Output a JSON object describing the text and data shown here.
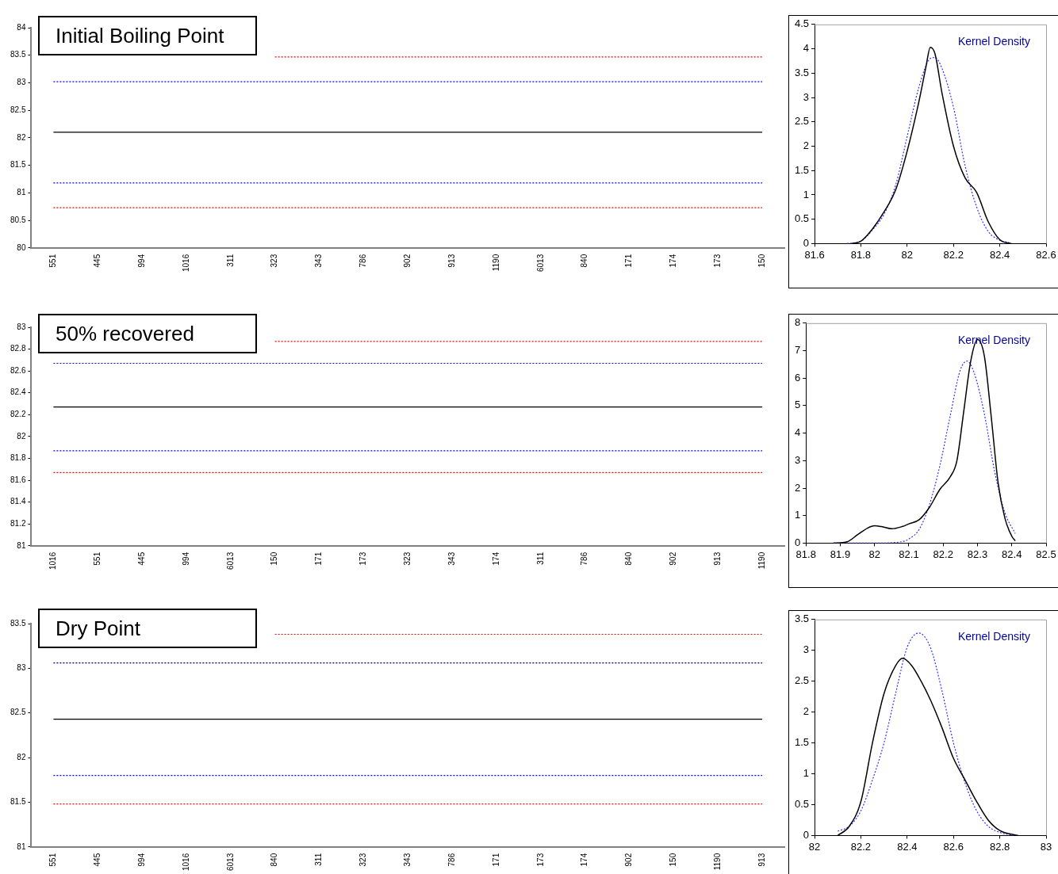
{
  "chart_data": [
    {
      "type": "line",
      "title": "Initial Boiling Point",
      "categories": [
        "551",
        "445",
        "994",
        "1016",
        "311",
        "323",
        "343",
        "786",
        "902",
        "913",
        "1190",
        "6013",
        "840",
        "171",
        "174",
        "173",
        "150"
      ],
      "ylim": [
        80,
        84
      ],
      "yticks": [
        80,
        80.5,
        81,
        81.5,
        82,
        82.5,
        83,
        83.5,
        84
      ],
      "grid": false,
      "legend": false,
      "marker": "none",
      "series": [
        {
          "color": "#ff0000",
          "line_style": "dotted",
          "values": [
            null,
            null,
            null,
            null,
            null,
            83.47,
            83.47,
            83.47,
            83.47,
            83.47,
            83.47,
            83.47,
            83.47,
            83.47,
            83.47,
            83.47,
            83.47
          ]
        },
        {
          "color": "#0000ff",
          "line_style": "dotted",
          "values": [
            83.02,
            83.02,
            83.02,
            83.02,
            83.02,
            83.02,
            83.02,
            83.02,
            83.02,
            83.02,
            83.02,
            83.02,
            83.02,
            83.02,
            83.02,
            83.02,
            83.02
          ]
        },
        {
          "color": "#000000",
          "line_style": "solid",
          "values": [
            82.1,
            82.1,
            82.1,
            82.1,
            82.1,
            82.1,
            82.1,
            82.1,
            82.1,
            82.1,
            82.1,
            82.1,
            82.1,
            82.1,
            82.1,
            82.1,
            82.1
          ]
        },
        {
          "color": "#0000ff",
          "line_style": "dotted",
          "values": [
            81.18,
            81.18,
            81.18,
            81.18,
            81.18,
            81.18,
            81.18,
            81.18,
            81.18,
            81.18,
            81.18,
            81.18,
            81.18,
            81.18,
            81.18,
            81.18,
            81.18
          ]
        },
        {
          "color": "#ff0000",
          "line_style": "dotted",
          "values": [
            80.73,
            80.73,
            80.73,
            80.73,
            80.73,
            80.73,
            80.73,
            80.73,
            80.73,
            80.73,
            80.73,
            80.73,
            80.73,
            80.73,
            80.73,
            80.73,
            80.73
          ]
        }
      ]
    },
    {
      "type": "line",
      "annotations": [
        "Kernel Density"
      ],
      "xlim": [
        81.6,
        82.6
      ],
      "xticks": [
        81.6,
        81.8,
        82,
        82.2,
        82.4,
        82.6
      ],
      "ylim": [
        0,
        4.5
      ],
      "yticks": [
        0,
        0.5,
        1,
        1.5,
        2,
        2.5,
        3,
        3.5,
        4,
        4.5
      ],
      "grid": false,
      "legend": false,
      "marker": "none",
      "series": [
        {
          "color": "#000000",
          "line_style": "solid",
          "x": [
            81.76,
            81.8,
            81.85,
            81.9,
            81.95,
            82.0,
            82.05,
            82.08,
            82.1,
            82.12,
            82.15,
            82.2,
            82.25,
            82.3,
            82.35,
            82.4,
            82.45
          ],
          "values": [
            0,
            0.05,
            0.3,
            0.65,
            1.1,
            1.9,
            2.9,
            3.6,
            4.03,
            3.9,
            3.1,
            2.0,
            1.35,
            1.05,
            0.45,
            0.08,
            0
          ]
        },
        {
          "color": "#3333ff",
          "line_style": "dotted",
          "x": [
            81.74,
            81.8,
            81.85,
            81.9,
            81.95,
            82.0,
            82.05,
            82.1,
            82.12,
            82.15,
            82.2,
            82.25,
            82.3,
            82.35,
            82.4,
            82.44
          ],
          "values": [
            0,
            0.05,
            0.28,
            0.6,
            1.2,
            2.2,
            3.2,
            3.8,
            3.82,
            3.6,
            2.8,
            1.6,
            0.75,
            0.25,
            0.07,
            0.02
          ]
        }
      ]
    },
    {
      "type": "line",
      "title": "50% recovered",
      "categories": [
        "1016",
        "551",
        "445",
        "994",
        "6013",
        "150",
        "171",
        "173",
        "323",
        "343",
        "174",
        "311",
        "786",
        "840",
        "902",
        "913",
        "1190"
      ],
      "ylim": [
        81,
        83
      ],
      "yticks": [
        81,
        81.2,
        81.4,
        81.6,
        81.8,
        82,
        82.2,
        82.4,
        82.6,
        82.8,
        83
      ],
      "grid": false,
      "legend": false,
      "marker": "none",
      "series": [
        {
          "color": "#ff0000",
          "line_style": "dotted",
          "values": [
            null,
            null,
            null,
            null,
            null,
            82.87,
            82.87,
            82.87,
            82.87,
            82.87,
            82.87,
            82.87,
            82.87,
            82.87,
            82.87,
            82.87,
            82.87
          ]
        },
        {
          "color": "#0000ff",
          "line_style": "dotted",
          "values": [
            82.67,
            82.67,
            82.67,
            82.67,
            82.67,
            82.67,
            82.67,
            82.67,
            82.67,
            82.67,
            82.67,
            82.67,
            82.67,
            82.67,
            82.67,
            82.67,
            82.67
          ]
        },
        {
          "color": "#000000",
          "line_style": "solid",
          "values": [
            82.27,
            82.27,
            82.27,
            82.27,
            82.27,
            82.27,
            82.27,
            82.27,
            82.27,
            82.27,
            82.27,
            82.27,
            82.27,
            82.27,
            82.27,
            82.27,
            82.27
          ]
        },
        {
          "color": "#0000ff",
          "line_style": "dotted",
          "values": [
            81.87,
            81.87,
            81.87,
            81.87,
            81.87,
            81.87,
            81.87,
            81.87,
            81.87,
            81.87,
            81.87,
            81.87,
            81.87,
            81.87,
            81.87,
            81.87,
            81.87
          ]
        },
        {
          "color": "#ff0000",
          "line_style": "dotted",
          "values": [
            81.67,
            81.67,
            81.67,
            81.67,
            81.67,
            81.67,
            81.67,
            81.67,
            81.67,
            81.67,
            81.67,
            81.67,
            81.67,
            81.67,
            81.67,
            81.67,
            81.67
          ]
        }
      ]
    },
    {
      "type": "line",
      "annotations": [
        "Kernel Density"
      ],
      "xlim": [
        81.8,
        82.5
      ],
      "xticks": [
        81.8,
        81.9,
        82,
        82.1,
        82.2,
        82.3,
        82.4,
        82.5
      ],
      "ylim": [
        0,
        8
      ],
      "yticks": [
        0,
        1,
        2,
        3,
        4,
        5,
        6,
        7,
        8
      ],
      "grid": false,
      "legend": false,
      "marker": "none",
      "series": [
        {
          "color": "#000000",
          "line_style": "solid",
          "x": [
            81.88,
            81.92,
            81.95,
            81.98,
            82.0,
            82.02,
            82.05,
            82.08,
            82.1,
            82.13,
            82.16,
            82.19,
            82.22,
            82.24,
            82.26,
            82.28,
            82.3,
            82.32,
            82.34,
            82.36,
            82.38,
            82.4,
            82.41
          ],
          "values": [
            0,
            0.05,
            0.3,
            0.55,
            0.63,
            0.6,
            0.52,
            0.6,
            0.7,
            0.85,
            1.3,
            1.95,
            2.4,
            3.0,
            4.8,
            6.6,
            7.4,
            6.8,
            4.6,
            2.2,
            0.9,
            0.25,
            0.08
          ]
        },
        {
          "color": "#3333ff",
          "line_style": "dotted",
          "x": [
            81.88,
            82.0,
            82.08,
            82.1,
            82.13,
            82.16,
            82.19,
            82.22,
            82.25,
            82.27,
            82.29,
            82.32,
            82.35,
            82.38,
            82.41
          ],
          "values": [
            0,
            0,
            0.05,
            0.15,
            0.5,
            1.4,
            2.8,
            4.6,
            6.3,
            6.62,
            6.2,
            4.7,
            2.6,
            1.1,
            0.35
          ]
        }
      ]
    },
    {
      "type": "line",
      "title": "Dry Point",
      "categories": [
        "551",
        "445",
        "994",
        "1016",
        "6013",
        "840",
        "311",
        "323",
        "343",
        "786",
        "171",
        "173",
        "174",
        "902",
        "150",
        "1190",
        "913"
      ],
      "ylim": [
        81,
        83.5
      ],
      "yticks": [
        81,
        81.5,
        82,
        82.5,
        83,
        83.5
      ],
      "grid": false,
      "legend": false,
      "marker": "none",
      "series": [
        {
          "color": "#ff0000",
          "line_style": "dotted",
          "values": [
            null,
            null,
            null,
            null,
            null,
            83.38,
            83.38,
            83.38,
            83.38,
            83.38,
            83.38,
            83.38,
            83.38,
            83.38,
            83.38,
            83.38,
            83.38
          ]
        },
        {
          "color": "#000080",
          "line_style": "dotted",
          "values": [
            83.06,
            83.06,
            83.06,
            83.06,
            83.06,
            83.06,
            83.06,
            83.06,
            83.06,
            83.06,
            83.06,
            83.06,
            83.06,
            83.06,
            83.06,
            83.06,
            83.06
          ]
        },
        {
          "color": "#000000",
          "line_style": "solid",
          "values": [
            82.43,
            82.43,
            82.43,
            82.43,
            82.43,
            82.43,
            82.43,
            82.43,
            82.43,
            82.43,
            82.43,
            82.43,
            82.43,
            82.43,
            82.43,
            82.43,
            82.43
          ]
        },
        {
          "color": "#0000ff",
          "line_style": "dotted",
          "values": [
            81.8,
            81.8,
            81.8,
            81.8,
            81.8,
            81.8,
            81.8,
            81.8,
            81.8,
            81.8,
            81.8,
            81.8,
            81.8,
            81.8,
            81.8,
            81.8,
            81.8
          ]
        },
        {
          "color": "#ff0000",
          "line_style": "dotted",
          "values": [
            81.48,
            81.48,
            81.48,
            81.48,
            81.48,
            81.48,
            81.48,
            81.48,
            81.48,
            81.48,
            81.48,
            81.48,
            81.48,
            81.48,
            81.48,
            81.48,
            81.48
          ]
        }
      ]
    },
    {
      "type": "line",
      "annotations": [
        "Kernel Density"
      ],
      "xlim": [
        82,
        83
      ],
      "xticks": [
        82,
        82.2,
        82.4,
        82.6,
        82.8,
        83
      ],
      "ylim": [
        0,
        3.5
      ],
      "yticks": [
        0,
        0.5,
        1,
        1.5,
        2,
        2.5,
        3,
        3.5
      ],
      "grid": false,
      "legend": false,
      "marker": "none",
      "series": [
        {
          "color": "#000000",
          "line_style": "solid",
          "x": [
            82.1,
            82.15,
            82.2,
            82.25,
            82.3,
            82.35,
            82.38,
            82.42,
            82.46,
            82.5,
            82.55,
            82.6,
            82.65,
            82.7,
            82.75,
            82.8,
            82.85,
            82.88
          ],
          "values": [
            0,
            0.15,
            0.55,
            1.5,
            2.3,
            2.75,
            2.87,
            2.75,
            2.5,
            2.2,
            1.75,
            1.25,
            0.9,
            0.55,
            0.25,
            0.08,
            0.02,
            0
          ]
        },
        {
          "color": "#3333ff",
          "line_style": "dotted",
          "x": [
            82.1,
            82.15,
            82.2,
            82.25,
            82.3,
            82.35,
            82.4,
            82.45,
            82.5,
            82.55,
            82.6,
            82.65,
            82.7,
            82.75,
            82.8,
            82.86
          ],
          "values": [
            0.07,
            0.15,
            0.4,
            0.9,
            1.5,
            2.3,
            3.05,
            3.28,
            3.05,
            2.35,
            1.5,
            0.85,
            0.4,
            0.15,
            0.05,
            0
          ]
        }
      ]
    }
  ]
}
